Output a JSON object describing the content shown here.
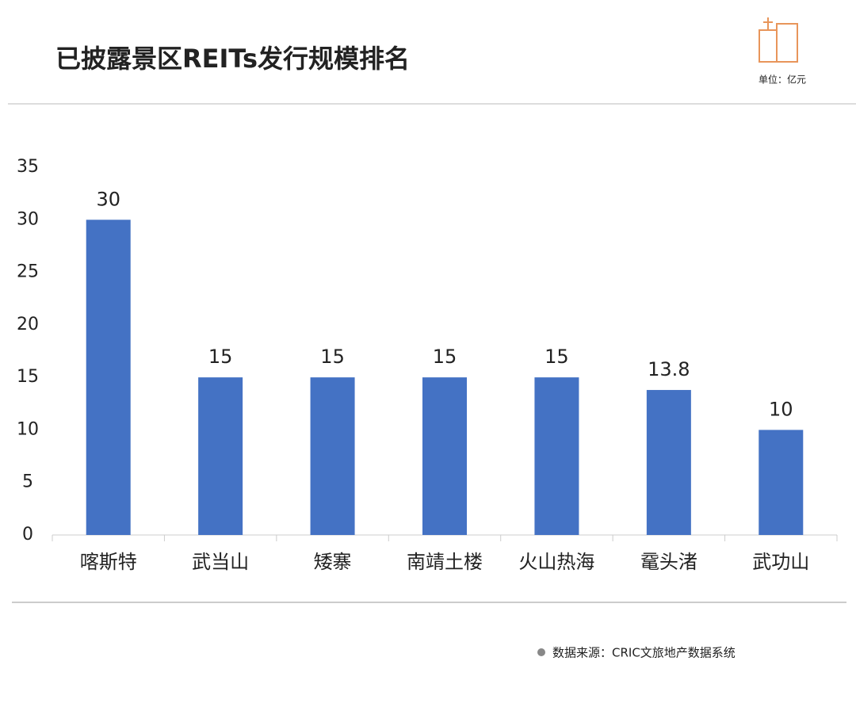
{
  "chart_data": {
    "type": "bar",
    "title": "已披露景区REITs发行规模排名",
    "unit": "单位：亿元",
    "source": "数据来源：CRIC文旅地产数据系统",
    "categories": [
      "喀斯特",
      "武当山",
      "矮寨",
      "南靖土楼",
      "火山热海",
      "鼋头渚",
      "武功山"
    ],
    "values": [
      30,
      15,
      15,
      15,
      15,
      13.8,
      10
    ],
    "color": "#4472c4",
    "ylim": [
      0,
      35
    ],
    "yticks": [
      0,
      5,
      10,
      15,
      20,
      25,
      30,
      35
    ]
  }
}
